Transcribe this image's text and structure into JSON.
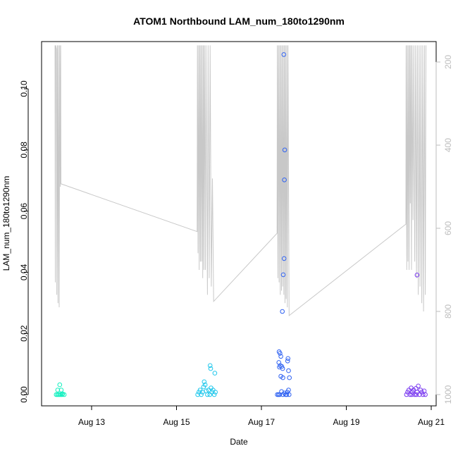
{
  "chart_data": {
    "type": "scatter",
    "title": "ATOM1 Northbound LAM_num_180to1290nm",
    "xlabel": "Date",
    "ylabel": "LAM_num_180to1290nm",
    "xlim": [
      "2024-08-12 00:00",
      "2024-08-21 00:00"
    ],
    "ylim": [
      -0.003,
      0.1155
    ],
    "y_ticks": [
      0.0,
      0.02,
      0.04,
      0.06,
      0.08,
      0.1
    ],
    "y_tick_labels": [
      "0.00",
      "0.02",
      "0.04",
      "0.06",
      "0.08",
      "0.10"
    ],
    "x_ticks": [
      "2024-08-13",
      "2024-08-15",
      "2024-08-17",
      "2024-08-19",
      "2024-08-21"
    ],
    "x_tick_labels": [
      "Aug 13",
      "Aug 15",
      "Aug 17",
      "Aug 19",
      "Aug 21"
    ],
    "right_axis": {
      "color": "#bdbdbd",
      "reversed": true,
      "ylim": [
        1030,
        160
      ],
      "ticks": [
        200,
        400,
        600,
        800,
        1000
      ],
      "tick_labels": [
        "200",
        "400",
        "600",
        "800",
        "1000"
      ]
    },
    "marker": "open-circle",
    "grid": false,
    "legend": "none",
    "series": [
      {
        "color": "#14f0c0",
        "points": [
          [
            "2024-08-12 04:00",
            0.0
          ],
          [
            "2024-08-12 04:40",
            0.0
          ],
          [
            "2024-08-12 05:20",
            0.0
          ],
          [
            "2024-08-12 06:00",
            0.0
          ],
          [
            "2024-08-12 06:40",
            0.0
          ],
          [
            "2024-08-12 07:20",
            0.0
          ],
          [
            "2024-08-12 04:50",
            0.0015
          ],
          [
            "2024-08-12 06:00",
            0.0032
          ],
          [
            "2024-08-12 06:50",
            0.0015
          ],
          [
            "2024-08-12 07:40",
            0.0002
          ],
          [
            "2024-08-12 08:30",
            0.0
          ]
        ]
      },
      {
        "color": "#22c8ec",
        "points": [
          [
            "2024-08-15 12:00",
            0.0
          ],
          [
            "2024-08-15 12:40",
            0.0008
          ],
          [
            "2024-08-15 13:20",
            0.0015
          ],
          [
            "2024-08-15 14:00",
            0.0
          ],
          [
            "2024-08-15 14:40",
            0.0008
          ],
          [
            "2024-08-15 15:20",
            0.0025
          ],
          [
            "2024-08-15 15:40",
            0.0042
          ],
          [
            "2024-08-15 16:10",
            0.0032
          ],
          [
            "2024-08-15 16:50",
            0.0012
          ],
          [
            "2024-08-15 17:30",
            0.0
          ],
          [
            "2024-08-15 18:10",
            0.0015
          ],
          [
            "2024-08-15 18:50",
            0.0
          ],
          [
            "2024-08-15 19:00",
            0.0095
          ],
          [
            "2024-08-15 19:20",
            0.0085
          ],
          [
            "2024-08-15 19:30",
            0.0022
          ],
          [
            "2024-08-15 20:00",
            0.0008
          ],
          [
            "2024-08-15 20:40",
            0.0015
          ],
          [
            "2024-08-15 21:20",
            0.0
          ],
          [
            "2024-08-15 21:40",
            0.007
          ],
          [
            "2024-08-15 22:00",
            0.0008
          ]
        ]
      },
      {
        "color": "#2f62f2",
        "points": [
          [
            "2024-08-17 09:00",
            0.0
          ],
          [
            "2024-08-17 09:40",
            0.0
          ],
          [
            "2024-08-17 10:20",
            0.0
          ],
          [
            "2024-08-17 10:00",
            0.014
          ],
          [
            "2024-08-17 10:30",
            0.0135
          ],
          [
            "2024-08-17 11:00",
            0.0125
          ],
          [
            "2024-08-17 10:40",
            0.0095
          ],
          [
            "2024-08-17 09:50",
            0.0105
          ],
          [
            "2024-08-17 10:10",
            0.009
          ],
          [
            "2024-08-17 11:30",
            0.0092
          ],
          [
            "2024-08-17 12:00",
            0.0085
          ],
          [
            "2024-08-17 11:00",
            0.006
          ],
          [
            "2024-08-17 12:10",
            0.0055
          ],
          [
            "2024-08-17 11:20",
            0.001
          ],
          [
            "2024-08-17 12:10",
            0.0
          ],
          [
            "2024-08-17 13:00",
            0.0005
          ],
          [
            "2024-08-17 13:40",
            0.0
          ],
          [
            "2024-08-17 14:20",
            0.0
          ],
          [
            "2024-08-17 14:40",
            0.0008
          ],
          [
            "2024-08-17 15:20",
            0.0015
          ],
          [
            "2024-08-17 15:40",
            0.0
          ],
          [
            "2024-08-17 14:50",
            0.011
          ],
          [
            "2024-08-17 15:00",
            0.0118
          ],
          [
            "2024-08-17 15:20",
            0.0078
          ],
          [
            "2024-08-17 15:50",
            0.0055
          ],
          [
            "2024-08-17 11:50",
            0.0272
          ],
          [
            "2024-08-17 12:20",
            0.0392
          ],
          [
            "2024-08-17 12:50",
            0.0445
          ],
          [
            "2024-08-17 13:00",
            0.0702
          ],
          [
            "2024-08-17 13:10",
            0.08
          ],
          [
            "2024-08-17 12:40",
            0.1112
          ]
        ]
      },
      {
        "color": "#7a3af0",
        "points": [
          [
            "2024-08-20 10:00",
            0.0
          ],
          [
            "2024-08-20 10:40",
            0.0008
          ],
          [
            "2024-08-20 11:20",
            0.0015
          ],
          [
            "2024-08-20 12:00",
            0.0
          ],
          [
            "2024-08-20 12:40",
            0.0022
          ],
          [
            "2024-08-20 13:20",
            0.0008
          ],
          [
            "2024-08-20 14:00",
            0.0015
          ],
          [
            "2024-08-20 14:40",
            0.0
          ],
          [
            "2024-08-20 15:20",
            0.002
          ],
          [
            "2024-08-20 16:00",
            0.0008
          ],
          [
            "2024-08-20 16:40",
            0.0028
          ],
          [
            "2024-08-20 17:20",
            0.0
          ],
          [
            "2024-08-20 18:00",
            0.0015
          ],
          [
            "2024-08-20 18:40",
            0.0008
          ],
          [
            "2024-08-20 19:20",
            0.0
          ],
          [
            "2024-08-20 20:00",
            0.0012
          ],
          [
            "2024-08-20 20:40",
            0.0
          ],
          [
            "2024-08-20 13:00",
            0.0
          ],
          [
            "2024-08-20 15:40",
            0.0
          ],
          [
            "2024-08-20 16:00",
            0.0391
          ]
        ]
      }
    ],
    "line_series": {
      "axis": "right",
      "color": "#c8c8c8",
      "points": [
        [
          "2024-08-12 03:20",
          160
        ],
        [
          "2024-08-12 03:30",
          730
        ],
        [
          "2024-08-12 03:40",
          160
        ],
        [
          "2024-08-12 04:10",
          170
        ],
        [
          "2024-08-12 04:20",
          760
        ],
        [
          "2024-08-12 04:40",
          160
        ],
        [
          "2024-08-12 05:00",
          780
        ],
        [
          "2024-08-12 05:20",
          160
        ],
        [
          "2024-08-12 05:40",
          790
        ],
        [
          "2024-08-12 06:00",
          160
        ],
        [
          "2024-08-12 06:20",
          500
        ],
        [
          "2024-08-12 06:30",
          160
        ],
        [
          "2024-08-12 06:40",
          493
        ],
        [
          "2024-08-15 11:40",
          608
        ],
        [
          "2024-08-15 11:50",
          160
        ],
        [
          "2024-08-15 12:10",
          660
        ],
        [
          "2024-08-15 12:30",
          160
        ],
        [
          "2024-08-15 12:50",
          700
        ],
        [
          "2024-08-15 13:10",
          160
        ],
        [
          "2024-08-15 13:30",
          680
        ],
        [
          "2024-08-15 13:50",
          160
        ],
        [
          "2024-08-15 14:10",
          680
        ],
        [
          "2024-08-15 14:30",
          160
        ],
        [
          "2024-08-15 14:50",
          720
        ],
        [
          "2024-08-15 15:10",
          160
        ],
        [
          "2024-08-15 15:30",
          700
        ],
        [
          "2024-08-15 15:50",
          160
        ],
        [
          "2024-08-15 16:20",
          700
        ],
        [
          "2024-08-15 16:40",
          160
        ],
        [
          "2024-08-15 17:30",
          760
        ],
        [
          "2024-08-15 17:50",
          160
        ],
        [
          "2024-08-15 18:30",
          720
        ],
        [
          "2024-08-15 19:00",
          160
        ],
        [
          "2024-08-15 19:40",
          740
        ],
        [
          "2024-08-15 20:20",
          480
        ],
        [
          "2024-08-15 21:00",
          776
        ],
        [
          "2024-08-17 08:50",
          612
        ],
        [
          "2024-08-17 09:00",
          160
        ],
        [
          "2024-08-17 09:20",
          720
        ],
        [
          "2024-08-17 09:40",
          160
        ],
        [
          "2024-08-17 10:00",
          730
        ],
        [
          "2024-08-17 10:20",
          160
        ],
        [
          "2024-08-17 10:40",
          760
        ],
        [
          "2024-08-17 11:00",
          160
        ],
        [
          "2024-08-17 11:20",
          750
        ],
        [
          "2024-08-17 11:40",
          160
        ],
        [
          "2024-08-17 12:00",
          740
        ],
        [
          "2024-08-17 12:20",
          160
        ],
        [
          "2024-08-17 12:40",
          760
        ],
        [
          "2024-08-17 13:00",
          160
        ],
        [
          "2024-08-17 13:20",
          780
        ],
        [
          "2024-08-17 13:40",
          160
        ],
        [
          "2024-08-17 14:00",
          770
        ],
        [
          "2024-08-17 14:20",
          160
        ],
        [
          "2024-08-17 14:40",
          790
        ],
        [
          "2024-08-17 15:00",
          160
        ],
        [
          "2024-08-17 15:40",
          810
        ],
        [
          "2024-08-20 09:40",
          590
        ],
        [
          "2024-08-20 09:50",
          160
        ],
        [
          "2024-08-20 10:10",
          700
        ],
        [
          "2024-08-20 10:30",
          160
        ],
        [
          "2024-08-20 10:50",
          680
        ],
        [
          "2024-08-20 11:10",
          160
        ],
        [
          "2024-08-20 11:30",
          700
        ],
        [
          "2024-08-20 11:50",
          160
        ],
        [
          "2024-08-20 12:10",
          540
        ],
        [
          "2024-08-20 12:30",
          160
        ],
        [
          "2024-08-20 12:50",
          700
        ],
        [
          "2024-08-20 13:10",
          160
        ],
        [
          "2024-08-20 13:40",
          580
        ],
        [
          "2024-08-20 14:10",
          160
        ],
        [
          "2024-08-20 14:40",
          680
        ],
        [
          "2024-08-20 15:10",
          160
        ],
        [
          "2024-08-20 15:40",
          720
        ],
        [
          "2024-08-20 16:10",
          160
        ],
        [
          "2024-08-20 16:40",
          760
        ],
        [
          "2024-08-20 17:10",
          160
        ],
        [
          "2024-08-20 17:40",
          740
        ],
        [
          "2024-08-20 18:10",
          160
        ],
        [
          "2024-08-20 18:40",
          780
        ],
        [
          "2024-08-20 19:10",
          160
        ],
        [
          "2024-08-20 19:40",
          800
        ],
        [
          "2024-08-20 20:10",
          160
        ],
        [
          "2024-08-20 20:40",
          760
        ],
        [
          "2024-08-20 21:00",
          160
        ]
      ]
    }
  }
}
